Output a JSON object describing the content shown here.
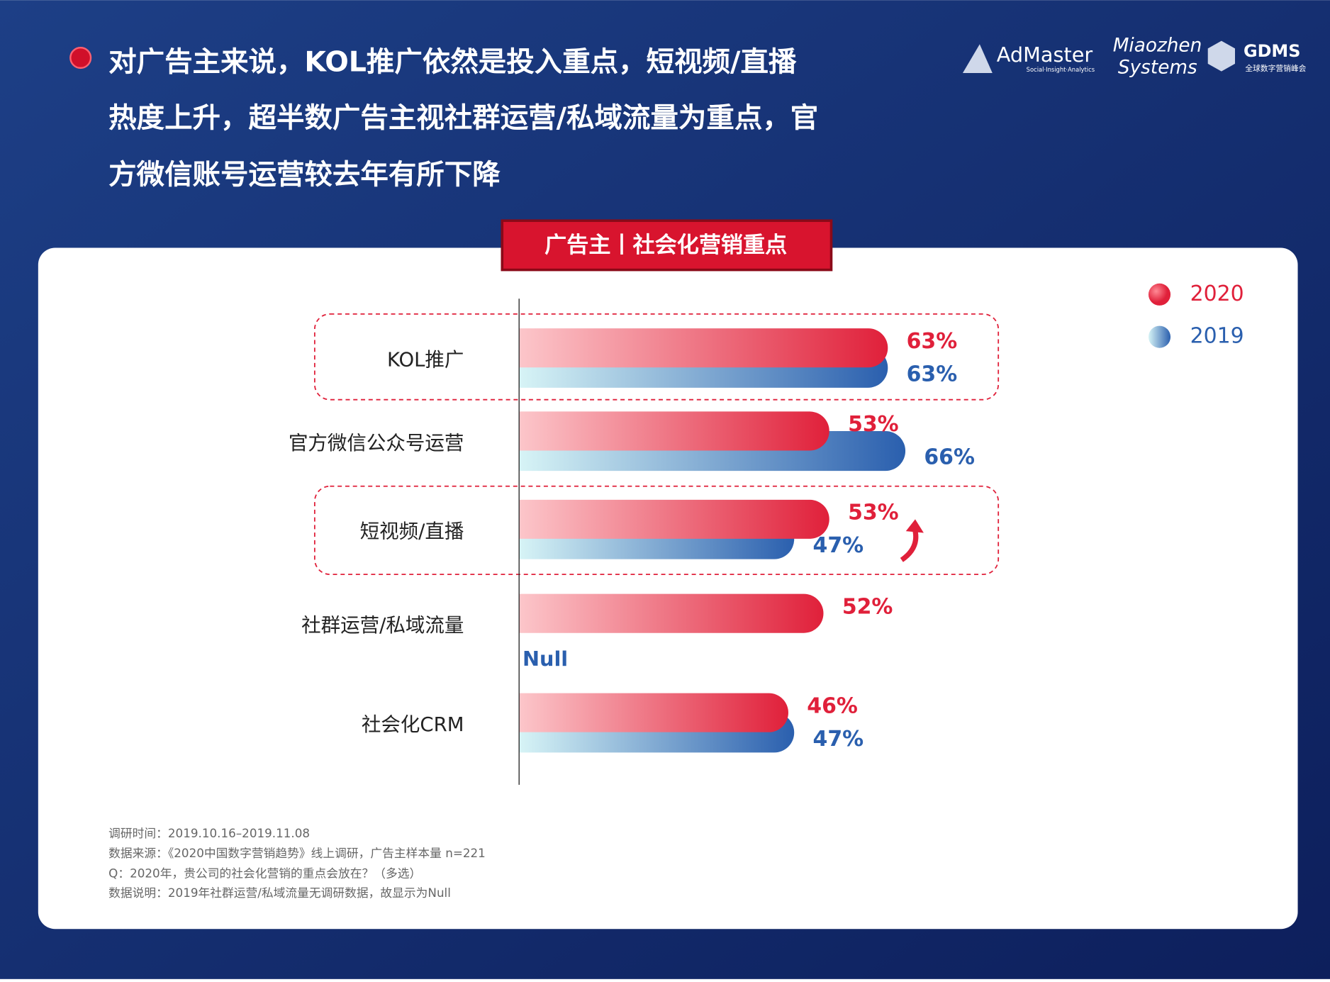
{
  "header": {
    "title_lines": [
      "对广告主来说，KOL推广依然是投入重点，短视频/直播",
      "热度上升，超半数广告主视社群运营/私域流量为重点，官",
      "方微信账号运营较去年有所下降"
    ],
    "logos": [
      "AdMaster",
      "Social·Insight·Analytics",
      "Miaozhen",
      "Systems",
      "GDMS",
      "全球数字营销峰会"
    ]
  },
  "chart_data": {
    "type": "bar",
    "orientation": "horizontal",
    "title": "广告主丨社会化营销重点",
    "categories": [
      "KOL推广",
      "官方微信公众号运营",
      "短视频/直播",
      "社群运营/私域流量",
      "社会化CRM"
    ],
    "series": [
      {
        "name": "2020",
        "color": "#e0203a",
        "values": [
          63,
          53,
          53,
          52,
          46
        ],
        "value_labels": [
          "63%",
          "53%",
          "53%",
          "52%",
          "46%"
        ]
      },
      {
        "name": "2019",
        "color": "#2a5fae",
        "values": [
          63,
          66,
          47,
          null,
          47
        ],
        "value_labels": [
          "63%",
          "66%",
          "47%",
          "Null",
          "47%"
        ]
      }
    ],
    "xlim": [
      0,
      100
    ],
    "legend": "top-right"
  },
  "footnotes": [
    "调研时间：2019.10.16–2019.11.08",
    "数据来源：《2020中国数字营销趋势》线上调研，广告主样本量 n=221",
    "Q：2020年，贵公司的社会化营销的重点会放在？（多选）",
    "数据说明：2019年社群运营/私域流量无调研数据，故显示为Null"
  ]
}
